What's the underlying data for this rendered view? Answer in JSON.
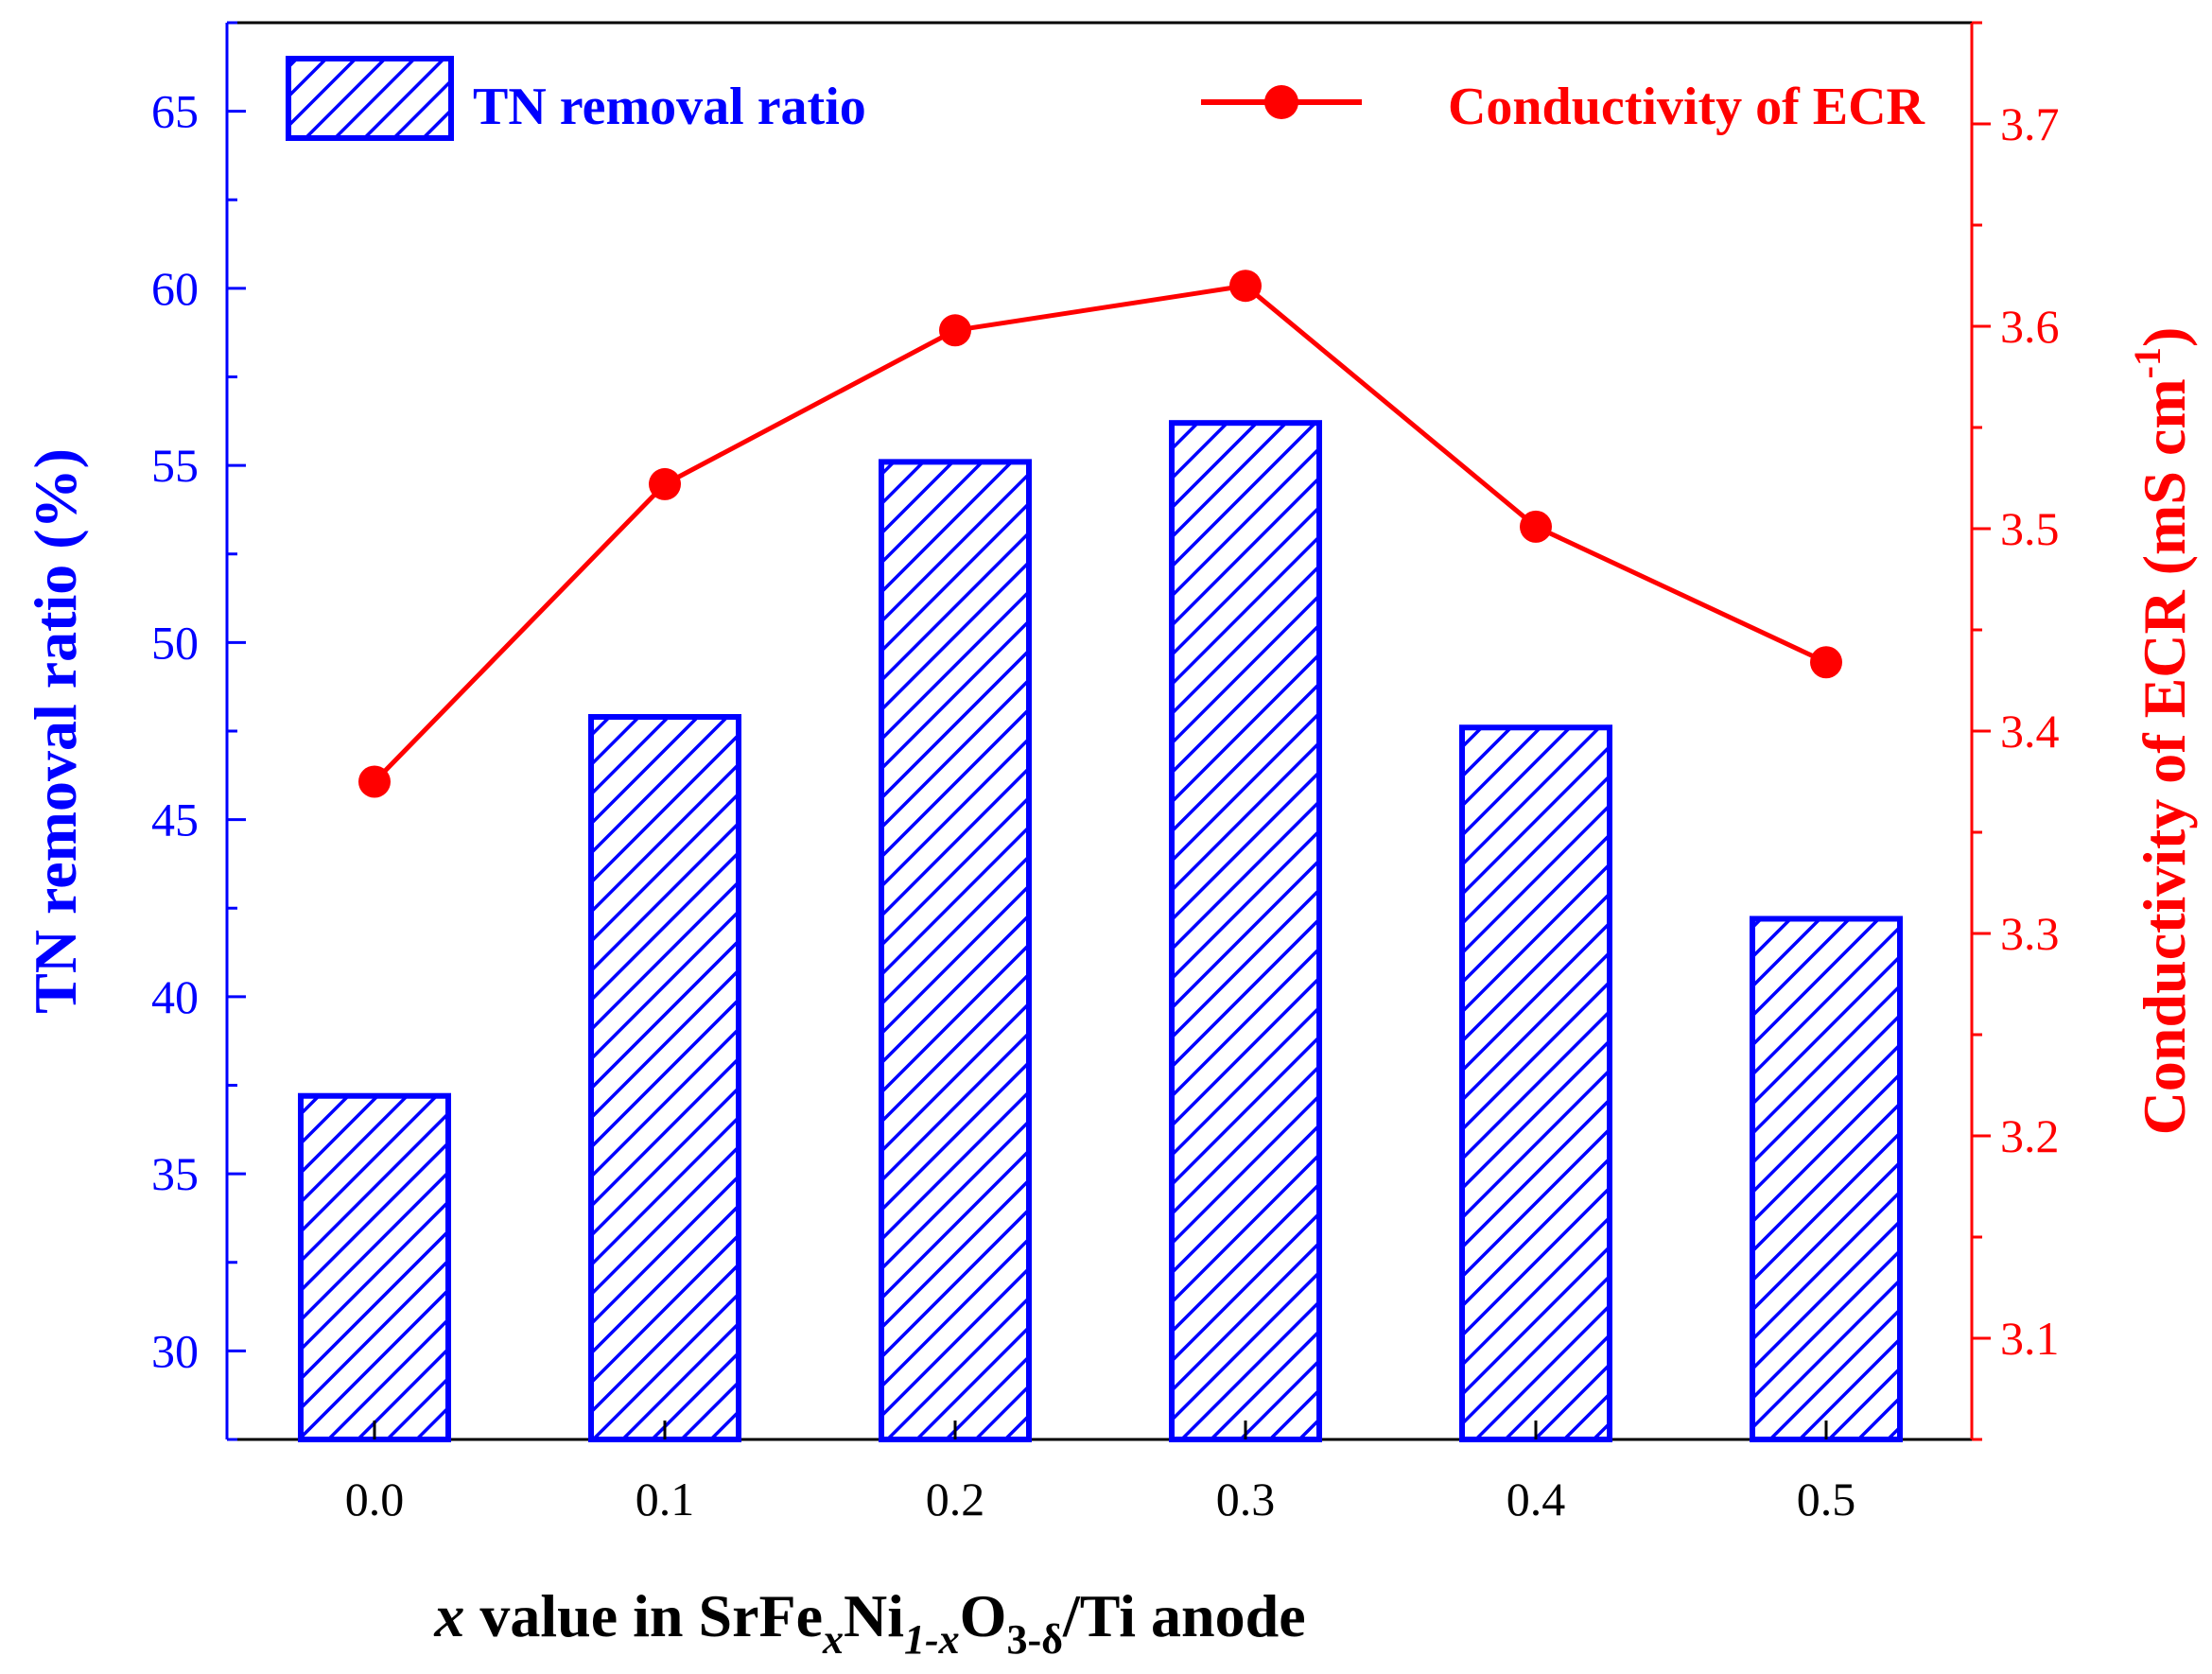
{
  "chart_data": {
    "type": "bar",
    "categories": [
      "0.0",
      "0.1",
      "0.2",
      "0.3",
      "0.4",
      "0.5"
    ],
    "series": [
      {
        "name": "TN removal ratio",
        "type": "bar",
        "axis": "left",
        "values": [
          37.2,
          47.9,
          55.1,
          56.2,
          47.6,
          42.2
        ]
      },
      {
        "name": "Conductivity of ECR",
        "type": "line",
        "axis": "right",
        "values": [
          3.375,
          3.522,
          3.598,
          3.62,
          3.501,
          3.434
        ]
      }
    ],
    "xlabel": {
      "italic_x": "x",
      "pre": " value in SrFe",
      "sub1": "x",
      "mid": "Ni",
      "sub2": "1-x",
      "mid2": "O",
      "sub3": "3-δ",
      "post": "/Ti anode"
    },
    "ylabel_left": "TN removal ratio (%)",
    "ylabel_right": {
      "main": "Conductivity of ECR (mS cm",
      "sup": "-1",
      "close": ")"
    },
    "ylim_left": [
      27.5,
      67.5
    ],
    "yticks_left": [
      "30",
      "35",
      "40",
      "45",
      "50",
      "55",
      "60",
      "65"
    ],
    "ylim_right": [
      3.05,
      3.75
    ],
    "yticks_right": [
      "3.1",
      "3.2",
      "3.3",
      "3.4",
      "3.5",
      "3.6",
      "3.7"
    ],
    "legend": {
      "bar_label": "TN removal ratio",
      "line_label": "Conductivity of ECR",
      "position": "top"
    },
    "colors": {
      "bar": "#0000ff",
      "line": "#ff0000",
      "axis_left": "#0000ff",
      "axis_right": "#ff0000",
      "axis_bottom": "#000000"
    },
    "grid": false
  }
}
